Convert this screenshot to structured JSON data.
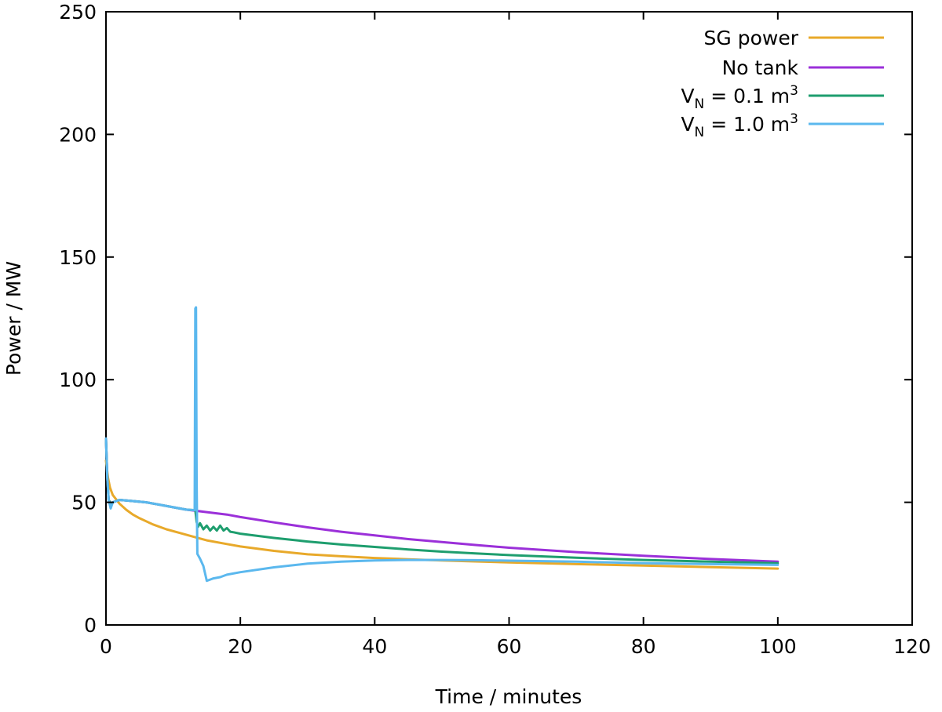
{
  "chart_data": {
    "type": "line",
    "xlabel": "Time / minutes",
    "ylabel": "Power / MW",
    "xlim": [
      0,
      120
    ],
    "ylim": [
      0,
      250
    ],
    "x_ticks": [
      0,
      20,
      40,
      60,
      80,
      100,
      120
    ],
    "y_ticks": [
      0,
      50,
      100,
      150,
      200,
      250
    ],
    "grid": false,
    "legend_position": "top-right",
    "series": [
      {
        "name": "SG power",
        "color": "#E8A92A",
        "x": [
          0,
          0.3,
          0.6,
          1,
          2,
          3,
          4,
          5,
          7,
          9,
          11,
          13,
          15,
          18,
          20,
          25,
          30,
          35,
          40,
          45,
          50,
          55,
          60,
          70,
          80,
          90,
          100
        ],
        "y": [
          67,
          60,
          56,
          53,
          49.5,
          47,
          45,
          43.5,
          41,
          39,
          37.5,
          36,
          34.5,
          33,
          32,
          30.2,
          28.8,
          28,
          27.3,
          26.8,
          26.3,
          25.9,
          25.5,
          24.8,
          24.2,
          23.6,
          23
        ]
      },
      {
        "name": "No tank",
        "color": "#9B30D9",
        "x": [
          0,
          0.2,
          0.4,
          0.7,
          1,
          2,
          4,
          6,
          8,
          10,
          12,
          13.5,
          15,
          18,
          20,
          25,
          30,
          35,
          40,
          45,
          50,
          55,
          60,
          70,
          80,
          90,
          100
        ],
        "y": [
          76,
          60,
          51,
          49.5,
          50,
          51,
          50.5,
          50,
          49,
          48,
          47,
          46.5,
          46,
          45,
          44,
          41.8,
          39.8,
          38,
          36.5,
          35,
          33.8,
          32.6,
          31.5,
          29.7,
          28.2,
          26.9,
          25.8
        ]
      },
      {
        "name": "V_N = 0.1 m³",
        "name_base": "V",
        "name_sub": "N",
        "name_mid": " = 0.1 m",
        "name_sup": "3",
        "color": "#1E9E6E",
        "x": [
          0,
          0.2,
          0.4,
          0.7,
          1,
          2,
          4,
          6,
          8,
          10,
          12,
          13.3,
          13.5,
          13.7,
          14,
          14.5,
          15,
          15.5,
          16,
          16.5,
          17,
          17.5,
          18,
          18.5,
          19,
          20,
          25,
          30,
          35,
          40,
          45,
          50,
          55,
          60,
          70,
          80,
          90,
          100
        ],
        "y": [
          76,
          60,
          51,
          49.5,
          50,
          51,
          50.5,
          50,
          49,
          48,
          47,
          46.8,
          42,
          40,
          41.5,
          39,
          40.5,
          38.5,
          40,
          38.5,
          40.5,
          38.5,
          39.5,
          38,
          37.8,
          37.2,
          35.5,
          34,
          32.8,
          31.8,
          30.8,
          29.9,
          29.2,
          28.5,
          27.4,
          26.5,
          25.8,
          25.2
        ]
      },
      {
        "name": "V_N = 1.0 m³",
        "name_base": "V",
        "name_sub": "N",
        "name_mid": " = 1.0 m",
        "name_sup": "3",
        "color": "#5BB8EE",
        "x": [
          0,
          0.2,
          0.4,
          0.7,
          1,
          2,
          4,
          6,
          8,
          10,
          12,
          13.2,
          13.3,
          13.4,
          13.5,
          13.6,
          14,
          14.5,
          15,
          15.5,
          16,
          17,
          18,
          20,
          25,
          30,
          35,
          40,
          45,
          50,
          55,
          60,
          70,
          80,
          90,
          100
        ],
        "y": [
          76,
          60,
          51,
          47.5,
          50,
          51,
          50.5,
          50,
          49,
          48,
          47,
          46.8,
          129,
          129.5,
          60,
          29,
          27,
          24,
          18,
          18.5,
          19,
          19.5,
          20.5,
          21.5,
          23.5,
          25,
          25.8,
          26.3,
          26.5,
          26.5,
          26.4,
          26.2,
          25.8,
          25.2,
          24.8,
          24.5
        ]
      }
    ]
  }
}
